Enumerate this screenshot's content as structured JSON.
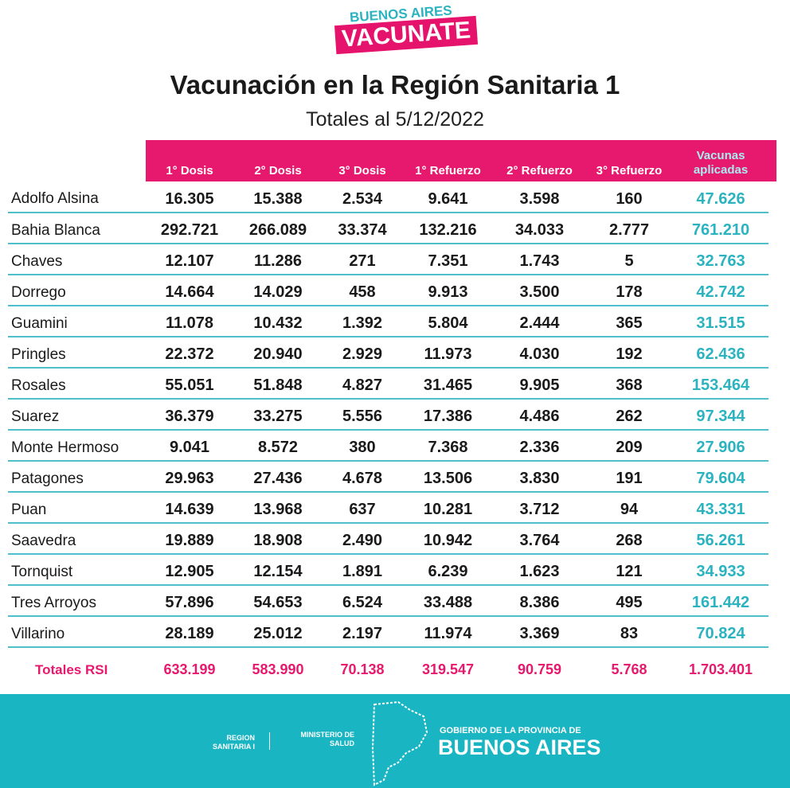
{
  "logo": {
    "top": "BUENOS AIRES",
    "main": "VACUNATE"
  },
  "title": "Vacunación en la Región Sanitaria 1",
  "subtitle": "Totales al  5/12/2022",
  "columns": [
    "1° Dosis",
    "2° Dosis",
    "3° Dosis",
    "1° Refuerzo",
    "2° Refuerzo",
    "3° Refuerzo",
    "Vacunas aplicadas"
  ],
  "rows": [
    [
      "Adolfo Alsina",
      "16.305",
      "15.388",
      "2.534",
      "9.641",
      "3.598",
      "160",
      "47.626"
    ],
    [
      "Bahia Blanca",
      "292.721",
      "266.089",
      "33.374",
      "132.216",
      "34.033",
      "2.777",
      "761.210"
    ],
    [
      "Chaves",
      "12.107",
      "11.286",
      "271",
      "7.351",
      "1.743",
      "5",
      "32.763"
    ],
    [
      "Dorrego",
      "14.664",
      "14.029",
      "458",
      "9.913",
      "3.500",
      "178",
      "42.742"
    ],
    [
      "Guamini",
      "11.078",
      "10.432",
      "1.392",
      "5.804",
      "2.444",
      "365",
      "31.515"
    ],
    [
      "Pringles",
      "22.372",
      "20.940",
      "2.929",
      "11.973",
      "4.030",
      "192",
      "62.436"
    ],
    [
      "Rosales",
      "55.051",
      "51.848",
      "4.827",
      "31.465",
      "9.905",
      "368",
      "153.464"
    ],
    [
      "Suarez",
      "36.379",
      "33.275",
      "5.556",
      "17.386",
      "4.486",
      "262",
      "97.344"
    ],
    [
      "Monte Hermoso",
      "9.041",
      "8.572",
      "380",
      "7.368",
      "2.336",
      "209",
      "27.906"
    ],
    [
      "Patagones",
      "29.963",
      "27.436",
      "4.678",
      "13.506",
      "3.830",
      "191",
      "79.604"
    ],
    [
      "Puan",
      "14.639",
      "13.968",
      "637",
      "10.281",
      "3.712",
      "94",
      "43.331"
    ],
    [
      "Saavedra",
      "19.889",
      "18.908",
      "2.490",
      "10.942",
      "3.764",
      "268",
      "56.261"
    ],
    [
      "Tornquist",
      "12.905",
      "12.154",
      "1.891",
      "6.239",
      "1.623",
      "121",
      "34.933"
    ],
    [
      "Tres Arroyos",
      "57.896",
      "54.653",
      "6.524",
      "33.488",
      "8.386",
      "495",
      "161.442"
    ],
    [
      "Villarino",
      "28.189",
      "25.012",
      "2.197",
      "11.974",
      "3.369",
      "83",
      "70.824"
    ]
  ],
  "totals": [
    "Totales RSI",
    "633.199",
    "583.990",
    "70.138",
    "319.547",
    "90.759",
    "5.768",
    "1.703.401"
  ],
  "footer": {
    "region": "REGION SANITARIA I",
    "ministry": "MINISTERIO DE SALUD",
    "gov_small": "GOBIERNO DE LA PROVINCIA DE",
    "gov_big": "BUENOS AIRES"
  },
  "colors": {
    "pink": "#e6196e",
    "teal": "#19b5c3"
  }
}
